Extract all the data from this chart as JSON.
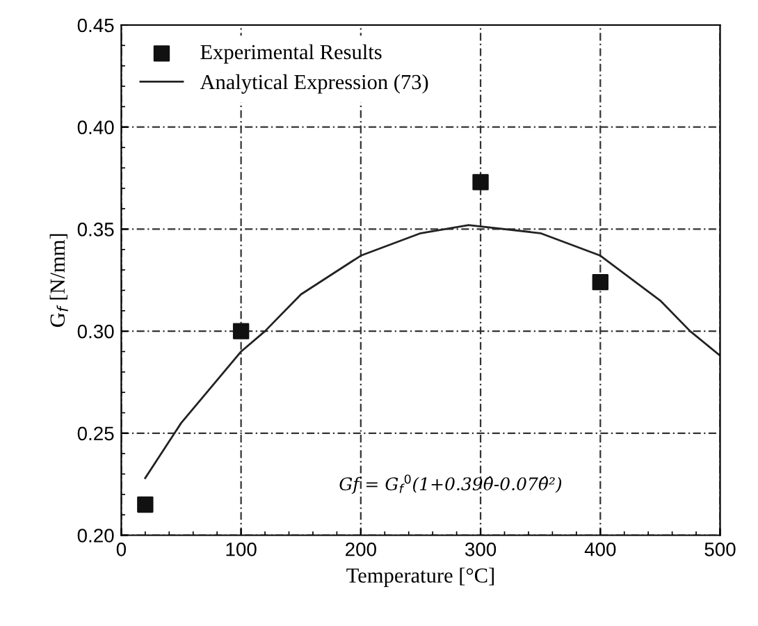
{
  "chart_data": {
    "type": "scatter",
    "xlabel": "Temperature [°C]",
    "ylabel": "G$_{f}$ [N/mm]",
    "xlim": [
      0,
      500
    ],
    "xticks": [
      0,
      100,
      200,
      300,
      400,
      500
    ],
    "ylim": [
      0.2,
      0.45
    ],
    "yticks": [
      {
        "value": 0.2,
        "label": "0.20"
      },
      0.25,
      {
        "value": 0.3,
        "label": "0.30"
      },
      0.35,
      {
        "value": 0.4,
        "label": "0.40"
      },
      0.45
    ],
    "grid": true,
    "legend": "top left",
    "marker": "square",
    "series": [
      {
        "name": "Experimental Results",
        "color": "#111111",
        "x": [
          20,
          100,
          300,
          400
        ],
        "values": [
          0.215,
          0.3,
          0.373,
          0.324
        ]
      },
      {
        "name": "Analytical Expression (73)",
        "type": "line",
        "color": "#222222",
        "marker": "none",
        "x": [
          20,
          50,
          100,
          120,
          150,
          200,
          250,
          290,
          350,
          400,
          450,
          475,
          500
        ],
        "values": [
          0.228,
          0.255,
          0.29,
          0.3,
          0.318,
          0.337,
          0.348,
          0.352,
          0.348,
          0.337,
          0.315,
          0.3,
          0.288
        ]
      }
    ],
    "annotations": [
      "Gf = G$_{f}$$^{0}$(1+0.39θ̂-0.07θ̂²)"
    ]
  }
}
